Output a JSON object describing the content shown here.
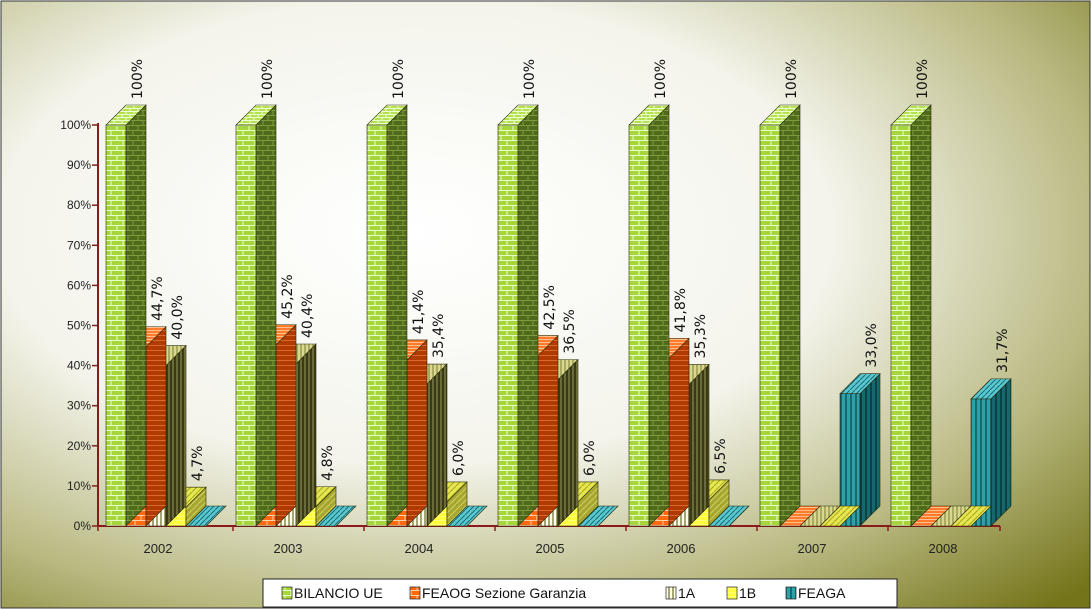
{
  "chart_data": {
    "type": "bar",
    "categories": [
      "2002",
      "2003",
      "2004",
      "2005",
      "2006",
      "2007",
      "2008"
    ],
    "series": [
      {
        "name": "BILANCIO UE",
        "values": [
          100,
          100,
          100,
          100,
          100,
          100,
          100
        ],
        "labels": [
          "100%",
          "100%",
          "100%",
          "100%",
          "100%",
          "100%",
          "100%"
        ]
      },
      {
        "name": "FEAOG Sezione Garanzia",
        "values": [
          44.7,
          45.2,
          41.4,
          42.5,
          41.8,
          0,
          0
        ],
        "labels": [
          "44,7%",
          "45,2%",
          "41,4%",
          "42,5%",
          "41,8%",
          "",
          ""
        ]
      },
      {
        "name": "1A",
        "values": [
          40.0,
          40.4,
          35.4,
          36.5,
          35.3,
          0,
          0
        ],
        "labels": [
          "40,0%",
          "40,4%",
          "35,4%",
          "36,5%",
          "35,3%",
          "",
          ""
        ]
      },
      {
        "name": "1B",
        "values": [
          4.7,
          4.8,
          6.0,
          6.0,
          6.5,
          0,
          0
        ],
        "labels": [
          "4,7%",
          "4,8%",
          "6,0%",
          "6,0%",
          "6,5%",
          "",
          ""
        ]
      },
      {
        "name": "FEAGA",
        "values": [
          0,
          0,
          0,
          0,
          0,
          33.0,
          31.7
        ],
        "labels": [
          "",
          "",
          "",
          "",
          "",
          "33,0%",
          "31,7%"
        ]
      }
    ],
    "y_ticks": [
      "0%",
      "10%",
      "20%",
      "30%",
      "40%",
      "50%",
      "60%",
      "70%",
      "80%",
      "90%",
      "100%"
    ],
    "ylim": [
      0,
      100
    ],
    "grid": false,
    "legend_position": "bottom",
    "title": "",
    "xlabel": "",
    "ylabel": "",
    "colors": {
      "BILANCIO UE": "#99cc33",
      "FEAOG Sezione Garanzia": "#ff6600",
      "1A": "#ffffcc",
      "1B": "#ffff33",
      "FEAGA": "#33aaaa",
      "axis": "#8b1a1a",
      "background_dark": "#7a7a1e"
    }
  }
}
